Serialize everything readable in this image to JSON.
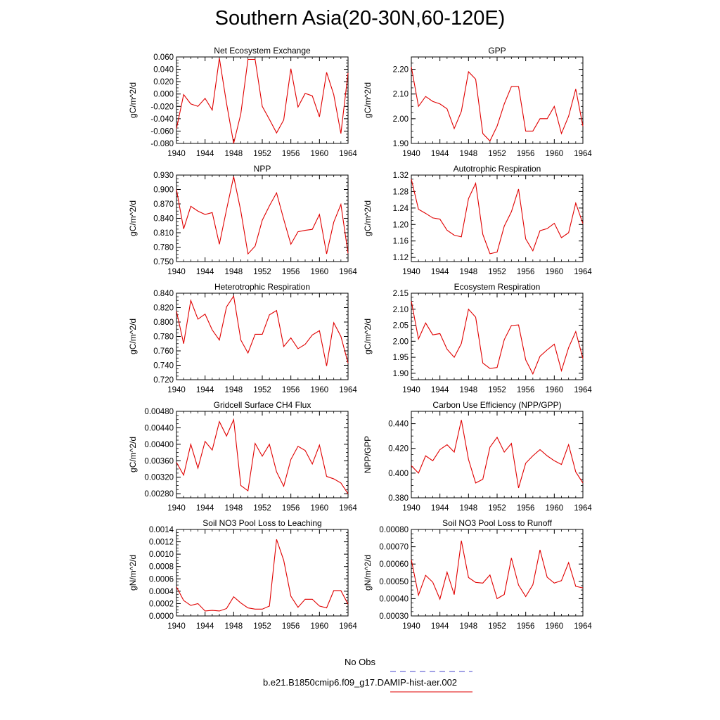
{
  "title": "Southern Asia(20-30N,60-120E)",
  "colors": {
    "model": "#e00000",
    "obs": "#4444cc",
    "axis": "#000000"
  },
  "legend": {
    "obs_label": "No Obs",
    "model_label": "b.e21.B1850cmip6.f09_g17.DAMIP-hist-aer.002"
  },
  "chart_data": [
    {
      "type": "line",
      "title": "Net Ecosystem Exchange",
      "ylabel": "gC/m^2/d",
      "xlim": [
        1940,
        1964
      ],
      "xticks": [
        "1940",
        "1944",
        "1948",
        "1952",
        "1956",
        "1960",
        "1964"
      ],
      "ylim": [
        -0.08,
        0.06
      ],
      "yticks": [
        "-0.080",
        "-0.060",
        "-0.040",
        "-0.020",
        "0.000",
        "0.020",
        "0.040",
        "0.060"
      ],
      "x": [
        1940,
        1941,
        1942,
        1943,
        1944,
        1945,
        1946,
        1947,
        1948,
        1949,
        1950,
        1951,
        1952,
        1953,
        1954,
        1955,
        1956,
        1957,
        1958,
        1959,
        1960,
        1961,
        1962,
        1963,
        1964
      ],
      "series": [
        {
          "values": [
            -0.056,
            -0.001,
            -0.016,
            -0.02,
            -0.007,
            -0.026,
            0.058,
            -0.015,
            -0.08,
            -0.032,
            0.056,
            0.056,
            -0.02,
            -0.041,
            -0.063,
            -0.042,
            0.041,
            -0.021,
            0.001,
            -0.003,
            -0.037,
            0.035,
            -0.001,
            -0.064,
            0.034
          ]
        }
      ]
    },
    {
      "type": "line",
      "title": "GPP",
      "ylabel": "gC/m^2/d",
      "xlim": [
        1940,
        1964
      ],
      "xticks": [
        "1940",
        "1944",
        "1948",
        "1952",
        "1956",
        "1960",
        "1964"
      ],
      "ylim": [
        1.9,
        2.25
      ],
      "yticks": [
        "1.90",
        "2.00",
        "2.10",
        "2.20"
      ],
      "x": [
        1940,
        1941,
        1942,
        1943,
        1944,
        1945,
        1946,
        1947,
        1948,
        1949,
        1950,
        1951,
        1952,
        1953,
        1954,
        1955,
        1956,
        1957,
        1958,
        1959,
        1960,
        1961,
        1962,
        1963,
        1964
      ],
      "series": [
        {
          "values": [
            2.21,
            2.05,
            2.09,
            2.07,
            2.06,
            2.04,
            1.96,
            2.03,
            2.19,
            2.16,
            1.94,
            1.91,
            1.97,
            2.06,
            2.13,
            2.13,
            1.95,
            1.95,
            2.0,
            2.0,
            2.05,
            1.94,
            2.01,
            2.12,
            1.97
          ]
        }
      ]
    },
    {
      "type": "line",
      "title": "NPP",
      "ylabel": "gC/m^2/d",
      "xlim": [
        1940,
        1964
      ],
      "xticks": [
        "1940",
        "1944",
        "1948",
        "1952",
        "1956",
        "1960",
        "1964"
      ],
      "ylim": [
        0.75,
        0.93
      ],
      "yticks": [
        "0.750",
        "0.780",
        "0.810",
        "0.840",
        "0.870",
        "0.900",
        "0.930"
      ],
      "x": [
        1940,
        1941,
        1942,
        1943,
        1944,
        1945,
        1946,
        1947,
        1948,
        1949,
        1950,
        1951,
        1952,
        1953,
        1954,
        1955,
        1956,
        1957,
        1958,
        1959,
        1960,
        1961,
        1962,
        1963,
        1964
      ],
      "series": [
        {
          "values": [
            0.9,
            0.818,
            0.865,
            0.855,
            0.848,
            0.852,
            0.786,
            0.858,
            0.927,
            0.855,
            0.766,
            0.782,
            0.836,
            0.866,
            0.893,
            0.838,
            0.786,
            0.812,
            0.815,
            0.817,
            0.848,
            0.766,
            0.832,
            0.869,
            0.767
          ]
        }
      ]
    },
    {
      "type": "line",
      "title": "Autotrophic Respiration",
      "ylabel": "gC/m^2/d",
      "xlim": [
        1940,
        1964
      ],
      "xticks": [
        "1940",
        "1944",
        "1948",
        "1952",
        "1956",
        "1960",
        "1964"
      ],
      "ylim": [
        1.11,
        1.32
      ],
      "yticks": [
        "1.12",
        "1.16",
        "1.20",
        "1.24",
        "1.28",
        "1.32"
      ],
      "x": [
        1940,
        1941,
        1942,
        1943,
        1944,
        1945,
        1946,
        1947,
        1948,
        1949,
        1950,
        1951,
        1952,
        1953,
        1954,
        1955,
        1956,
        1957,
        1958,
        1959,
        1960,
        1961,
        1962,
        1963,
        1964
      ],
      "series": [
        {
          "values": [
            1.31,
            1.237,
            1.227,
            1.216,
            1.213,
            1.186,
            1.174,
            1.17,
            1.263,
            1.3,
            1.176,
            1.129,
            1.133,
            1.196,
            1.231,
            1.286,
            1.165,
            1.136,
            1.185,
            1.19,
            1.203,
            1.168,
            1.18,
            1.252,
            1.202
          ]
        }
      ]
    },
    {
      "type": "line",
      "title": "Heterotrophic Respiration",
      "ylabel": "gC/m^2/d",
      "xlim": [
        1940,
        1964
      ],
      "xticks": [
        "1940",
        "1944",
        "1948",
        "1952",
        "1956",
        "1960",
        "1964"
      ],
      "ylim": [
        0.72,
        0.84
      ],
      "yticks": [
        "0.720",
        "0.740",
        "0.760",
        "0.780",
        "0.800",
        "0.820",
        "0.840"
      ],
      "x": [
        1940,
        1941,
        1942,
        1943,
        1944,
        1945,
        1946,
        1947,
        1948,
        1949,
        1950,
        1951,
        1952,
        1953,
        1954,
        1955,
        1956,
        1957,
        1958,
        1959,
        1960,
        1961,
        1962,
        1963,
        1964
      ],
      "series": [
        {
          "values": [
            0.815,
            0.77,
            0.83,
            0.804,
            0.811,
            0.789,
            0.775,
            0.821,
            0.836,
            0.775,
            0.757,
            0.783,
            0.783,
            0.81,
            0.816,
            0.766,
            0.778,
            0.763,
            0.769,
            0.782,
            0.788,
            0.739,
            0.799,
            0.78,
            0.743
          ]
        }
      ]
    },
    {
      "type": "line",
      "title": "Ecosystem Respiration",
      "ylabel": "gC/m^2/d",
      "xlim": [
        1940,
        1964
      ],
      "xticks": [
        "1940",
        "1944",
        "1948",
        "1952",
        "1956",
        "1960",
        "1964"
      ],
      "ylim": [
        1.88,
        2.15
      ],
      "yticks": [
        "1.90",
        "1.95",
        "2.00",
        "2.05",
        "2.10",
        "2.15"
      ],
      "x": [
        1940,
        1941,
        1942,
        1943,
        1944,
        1945,
        1946,
        1947,
        1948,
        1949,
        1950,
        1951,
        1952,
        1953,
        1954,
        1955,
        1956,
        1957,
        1958,
        1959,
        1960,
        1961,
        1962,
        1963,
        1964
      ],
      "series": [
        {
          "values": [
            2.125,
            2.007,
            2.057,
            2.02,
            2.024,
            1.975,
            1.95,
            1.993,
            2.1,
            2.075,
            1.932,
            1.915,
            1.918,
            2.005,
            2.049,
            2.051,
            1.942,
            1.898,
            1.953,
            1.973,
            1.991,
            1.908,
            1.98,
            2.03,
            1.946
          ]
        }
      ]
    },
    {
      "type": "line",
      "title": "Gridcell Surface CH4 Flux",
      "ylabel": "gC/m^2/d",
      "xlim": [
        1940,
        1964
      ],
      "xticks": [
        "1940",
        "1944",
        "1948",
        "1952",
        "1956",
        "1960",
        "1964"
      ],
      "ylim": [
        0.0027,
        0.0048
      ],
      "yticks": [
        "0.00280",
        "0.00320",
        "0.00360",
        "0.00400",
        "0.00440",
        "0.00480"
      ],
      "x": [
        1940,
        1941,
        1942,
        1943,
        1944,
        1945,
        1946,
        1947,
        1948,
        1949,
        1950,
        1951,
        1952,
        1953,
        1954,
        1955,
        1956,
        1957,
        1958,
        1959,
        1960,
        1961,
        1962,
        1963,
        1964
      ],
      "series": [
        {
          "values": [
            0.00356,
            0.00325,
            0.004,
            0.00342,
            0.00407,
            0.00386,
            0.00455,
            0.0042,
            0.0046,
            0.003,
            0.00287,
            0.00402,
            0.00371,
            0.004,
            0.00333,
            0.00298,
            0.00363,
            0.00395,
            0.00385,
            0.00352,
            0.00398,
            0.00322,
            0.00316,
            0.00306,
            0.0028
          ]
        }
      ]
    },
    {
      "type": "line",
      "title": "Carbon Use Efficiency (NPP/GPP)",
      "ylabel": "NPP/GPP",
      "xlim": [
        1940,
        1964
      ],
      "xticks": [
        "1940",
        "1944",
        "1948",
        "1952",
        "1956",
        "1960",
        "1964"
      ],
      "ylim": [
        0.38,
        0.45
      ],
      "yticks": [
        "0.380",
        "0.400",
        "0.420",
        "0.440"
      ],
      "x": [
        1940,
        1941,
        1942,
        1943,
        1944,
        1945,
        1946,
        1947,
        1948,
        1949,
        1950,
        1951,
        1952,
        1953,
        1954,
        1955,
        1956,
        1957,
        1958,
        1959,
        1960,
        1961,
        1962,
        1963,
        1964
      ],
      "series": [
        {
          "values": [
            0.406,
            0.4,
            0.414,
            0.41,
            0.419,
            0.423,
            0.417,
            0.443,
            0.411,
            0.392,
            0.395,
            0.421,
            0.429,
            0.417,
            0.424,
            0.388,
            0.408,
            0.414,
            0.419,
            0.414,
            0.41,
            0.407,
            0.423,
            0.401,
            0.392
          ]
        }
      ]
    },
    {
      "type": "line",
      "title": "Soil NO3 Pool Loss to Leaching",
      "ylabel": "gN/m^2/d",
      "xlim": [
        1940,
        1964
      ],
      "xticks": [
        "1940",
        "1944",
        "1948",
        "1952",
        "1956",
        "1960",
        "1964"
      ],
      "ylim": [
        0.0,
        0.0014
      ],
      "yticks": [
        "0.0000",
        "0.0002",
        "0.0004",
        "0.0006",
        "0.0008",
        "0.0010",
        "0.0012",
        "0.0014"
      ],
      "x": [
        1940,
        1941,
        1942,
        1943,
        1944,
        1945,
        1946,
        1947,
        1948,
        1949,
        1950,
        1951,
        1952,
        1953,
        1954,
        1955,
        1956,
        1957,
        1958,
        1959,
        1960,
        1961,
        1962,
        1963,
        1964
      ],
      "series": [
        {
          "values": [
            0.00047,
            0.00025,
            0.00017,
            0.0002,
            8e-05,
            9e-05,
            8e-05,
            0.00012,
            0.00031,
            0.00021,
            0.00013,
            0.00011,
            0.00011,
            0.00016,
            0.00124,
            0.0009,
            0.00032,
            0.00014,
            0.00027,
            0.00027,
            0.00016,
            0.00013,
            0.00041,
            0.00041,
            0.00019
          ]
        }
      ]
    },
    {
      "type": "line",
      "title": "Soil NO3 Pool Loss to Runoff",
      "ylabel": "gN/m^2/d",
      "xlim": [
        1940,
        1964
      ],
      "xticks": [
        "1940",
        "1944",
        "1948",
        "1952",
        "1956",
        "1960",
        "1964"
      ],
      "ylim": [
        0.0003,
        0.0008
      ],
      "yticks": [
        "0.00030",
        "0.00040",
        "0.00050",
        "0.00060",
        "0.00070",
        "0.00080"
      ],
      "x": [
        1940,
        1941,
        1942,
        1943,
        1944,
        1945,
        1946,
        1947,
        1948,
        1949,
        1950,
        1951,
        1952,
        1953,
        1954,
        1955,
        1956,
        1957,
        1958,
        1959,
        1960,
        1961,
        1962,
        1963,
        1964
      ],
      "series": [
        {
          "values": [
            0.000625,
            0.00042,
            0.000535,
            0.000495,
            0.000397,
            0.000553,
            0.000423,
            0.000735,
            0.000522,
            0.000494,
            0.00049,
            0.000537,
            0.0004,
            0.000424,
            0.000635,
            0.000478,
            0.000412,
            0.00048,
            0.000682,
            0.000524,
            0.00049,
            0.000504,
            0.000608,
            0.000471,
            0.000462
          ]
        }
      ]
    }
  ]
}
